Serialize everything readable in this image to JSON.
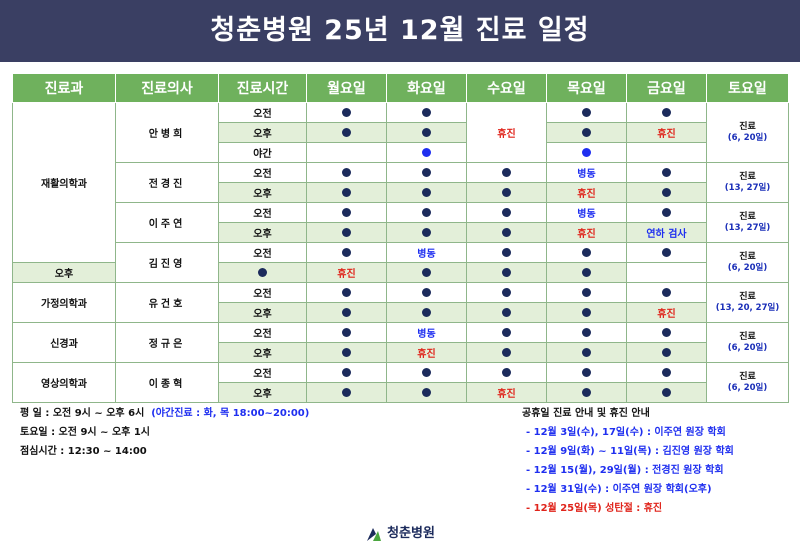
{
  "header": {
    "title": "청춘병원 25년 12월 진료 일정"
  },
  "table": {
    "columns": [
      "진료과",
      "진료의사",
      "진료시간",
      "월요일",
      "화요일",
      "수요일",
      "목요일",
      "금요일",
      "토요일"
    ],
    "time_labels": {
      "am": "오전",
      "pm": "오후",
      "night": "야간"
    },
    "rows": [
      {
        "dept": "재활의학과",
        "doctor": "안병희",
        "am": [
          "dot",
          "dot",
          "휴진",
          "dot",
          "dot"
        ],
        "pm": [
          "dot",
          "dot",
          "휴진",
          "dot",
          "휴진"
        ],
        "night": [
          "",
          "bluedot",
          "휴진",
          "bluedot",
          ""
        ],
        "sat_top": "진료",
        "sat_bot": "(6, 20일)"
      },
      {
        "doctor": "전경진",
        "am": [
          "dot",
          "dot",
          "dot",
          "병동",
          "dot"
        ],
        "pm": [
          "dot",
          "dot",
          "dot",
          "휴진",
          "dot"
        ],
        "sat_top": "진료",
        "sat_bot": "(13, 27일)"
      },
      {
        "doctor": "이주연",
        "am": [
          "dot",
          "dot",
          "dot",
          "병동",
          "dot"
        ],
        "pm": [
          "dot",
          "dot",
          "dot",
          "휴진",
          "연하 검사"
        ],
        "sat_top": "진료",
        "sat_bot": "(13, 27일)"
      },
      {
        "doctor": "김진영",
        "am": [
          "dot",
          "병동",
          "dot",
          "dot",
          "dot"
        ],
        "pm": [
          "dot",
          "휴진",
          "dot",
          "dot",
          "dot"
        ],
        "sat_top": "진료",
        "sat_bot": "(6, 20일)"
      },
      {
        "dept": "가정의학과",
        "doctor": "유건호",
        "am": [
          "dot",
          "dot",
          "dot",
          "dot",
          "dot"
        ],
        "pm": [
          "dot",
          "dot",
          "dot",
          "dot",
          "휴진"
        ],
        "sat_top": "진료",
        "sat_bot": "(13, 20, 27일)"
      },
      {
        "dept": "신경과",
        "doctor": "정규은",
        "am": [
          "dot",
          "병동",
          "dot",
          "dot",
          "dot"
        ],
        "pm": [
          "dot",
          "휴진",
          "dot",
          "dot",
          "dot"
        ],
        "sat_top": "진료",
        "sat_bot": "(6, 20일)"
      },
      {
        "dept": "영상의학과",
        "doctor": "이종혁",
        "am": [
          "dot",
          "dot",
          "dot",
          "dot",
          "dot"
        ],
        "pm": [
          "dot",
          "dot",
          "휴진",
          "dot",
          "dot"
        ],
        "sat_top": "진료",
        "sat_bot": "(6, 20일)"
      }
    ]
  },
  "notes": {
    "weekday": "평    일 : 오전 9시 ~ 오후 6시",
    "night": "(야간진료 : 화, 목 18:00~20:00)",
    "saturday": "토요일 : 오전 9시 ~ 오후 1시",
    "lunch": "점심시간 : 12:30 ~ 14:00"
  },
  "holidays": {
    "title": "공휴일 진료 안내 및 휴진 안내",
    "items": [
      "- 12월 3일(수), 17일(수) : 이주연 원장 학회",
      "- 12월 9일(화) ~ 11일(목) : 김진영 원장 학회",
      "- 12월 15(월), 29일(월) : 전경진 원장 학회",
      "- 12월 31일(수) : 이주연 원장 학회(오후)",
      "- 12월 25일(목) 성탄절 : 휴진"
    ]
  },
  "footer": {
    "logo_text": "청춘병원"
  },
  "colors": {
    "header_bg": "#3a3f63",
    "table_header": "#6fb15d",
    "shade": "#e3efd9",
    "red": "#e0241b",
    "blue": "#1f2ff0",
    "navy": "#1c2b5c"
  }
}
